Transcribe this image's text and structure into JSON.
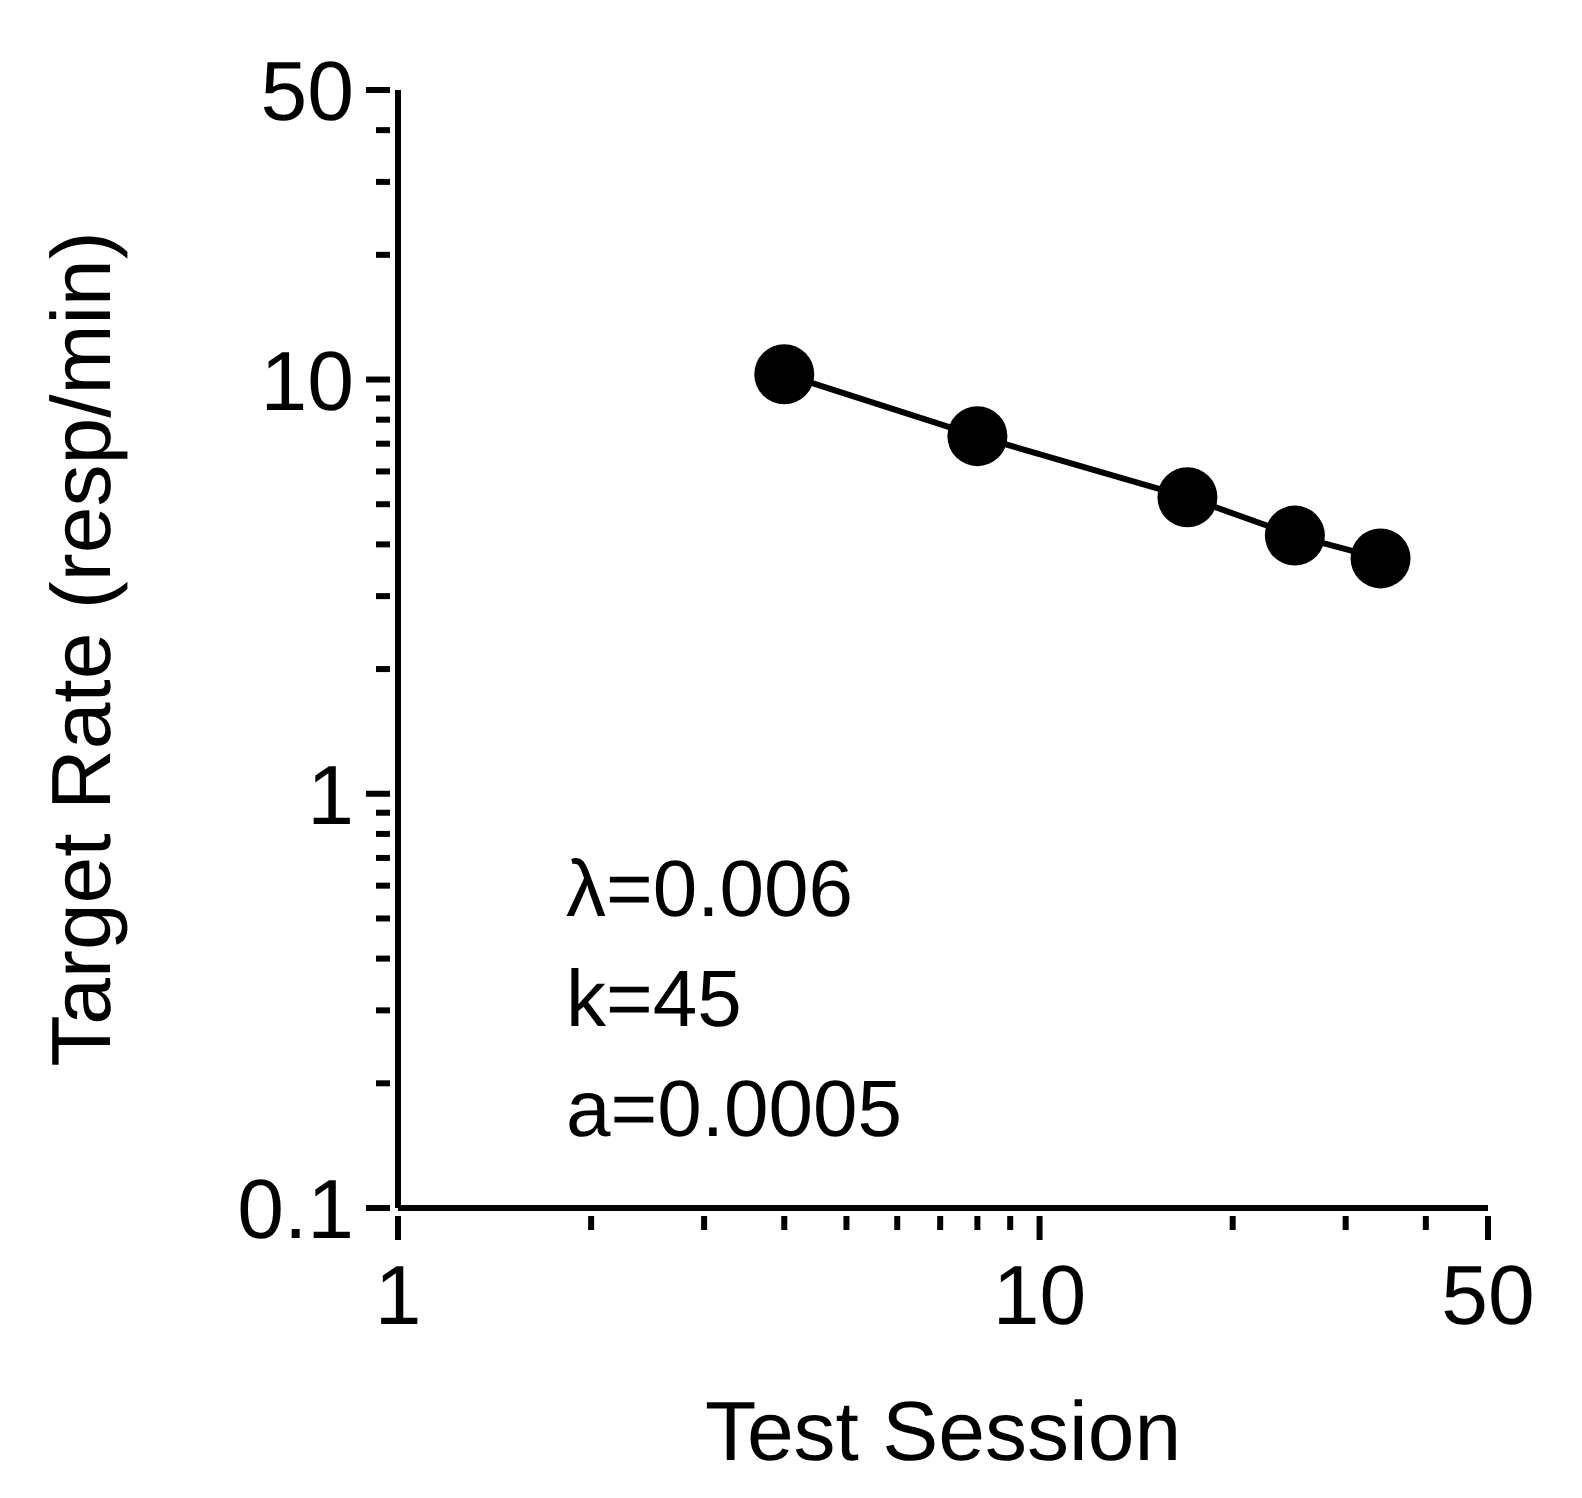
{
  "chart_data": {
    "type": "line",
    "xlabel": "Test Session",
    "ylabel": "Target Rate (resp/min)",
    "log": "xy",
    "x": [
      4,
      8,
      17,
      25,
      34
    ],
    "series": [
      {
        "color": "#000000",
        "values": [
          10.3,
          7.3,
          5.2,
          4.2,
          3.7
        ]
      }
    ],
    "marker": "circle",
    "line_style": "solid",
    "grid": false,
    "legend": false,
    "xlim": [
      1,
      50
    ],
    "xticks": [
      1,
      {
        "value": 2,
        "label": null
      },
      {
        "value": 3,
        "label": null
      },
      {
        "value": 4,
        "label": null
      },
      {
        "value": 5,
        "label": null
      },
      {
        "value": 6,
        "label": null
      },
      {
        "value": 7,
        "label": null
      },
      {
        "value": 8,
        "label": null
      },
      {
        "value": 9,
        "label": null
      },
      10,
      {
        "value": 20,
        "label": null
      },
      {
        "value": 30,
        "label": null
      },
      {
        "value": 40,
        "label": null
      },
      50
    ],
    "ylim": [
      0.1,
      50
    ],
    "yticks": [
      0.1,
      {
        "value": 0.2,
        "label": null
      },
      {
        "value": 0.3,
        "label": null
      },
      {
        "value": 0.4,
        "label": null
      },
      {
        "value": 0.5,
        "label": null
      },
      {
        "value": 0.6,
        "label": null
      },
      {
        "value": 0.7,
        "label": null
      },
      {
        "value": 0.8,
        "label": null
      },
      {
        "value": 0.9,
        "label": null
      },
      1,
      {
        "value": 2,
        "label": null
      },
      {
        "value": 3,
        "label": null
      },
      {
        "value": 4,
        "label": null
      },
      {
        "value": 5,
        "label": null
      },
      {
        "value": 6,
        "label": null
      },
      {
        "value": 7,
        "label": null
      },
      {
        "value": 8,
        "label": null
      },
      {
        "value": 9,
        "label": null
      },
      10,
      {
        "value": 20,
        "label": null
      },
      {
        "value": 30,
        "label": null
      },
      {
        "value": 40,
        "label": null
      },
      50
    ],
    "annotations": [
      "λ=0.006",
      "k=45",
      "a=0.0005"
    ]
  }
}
